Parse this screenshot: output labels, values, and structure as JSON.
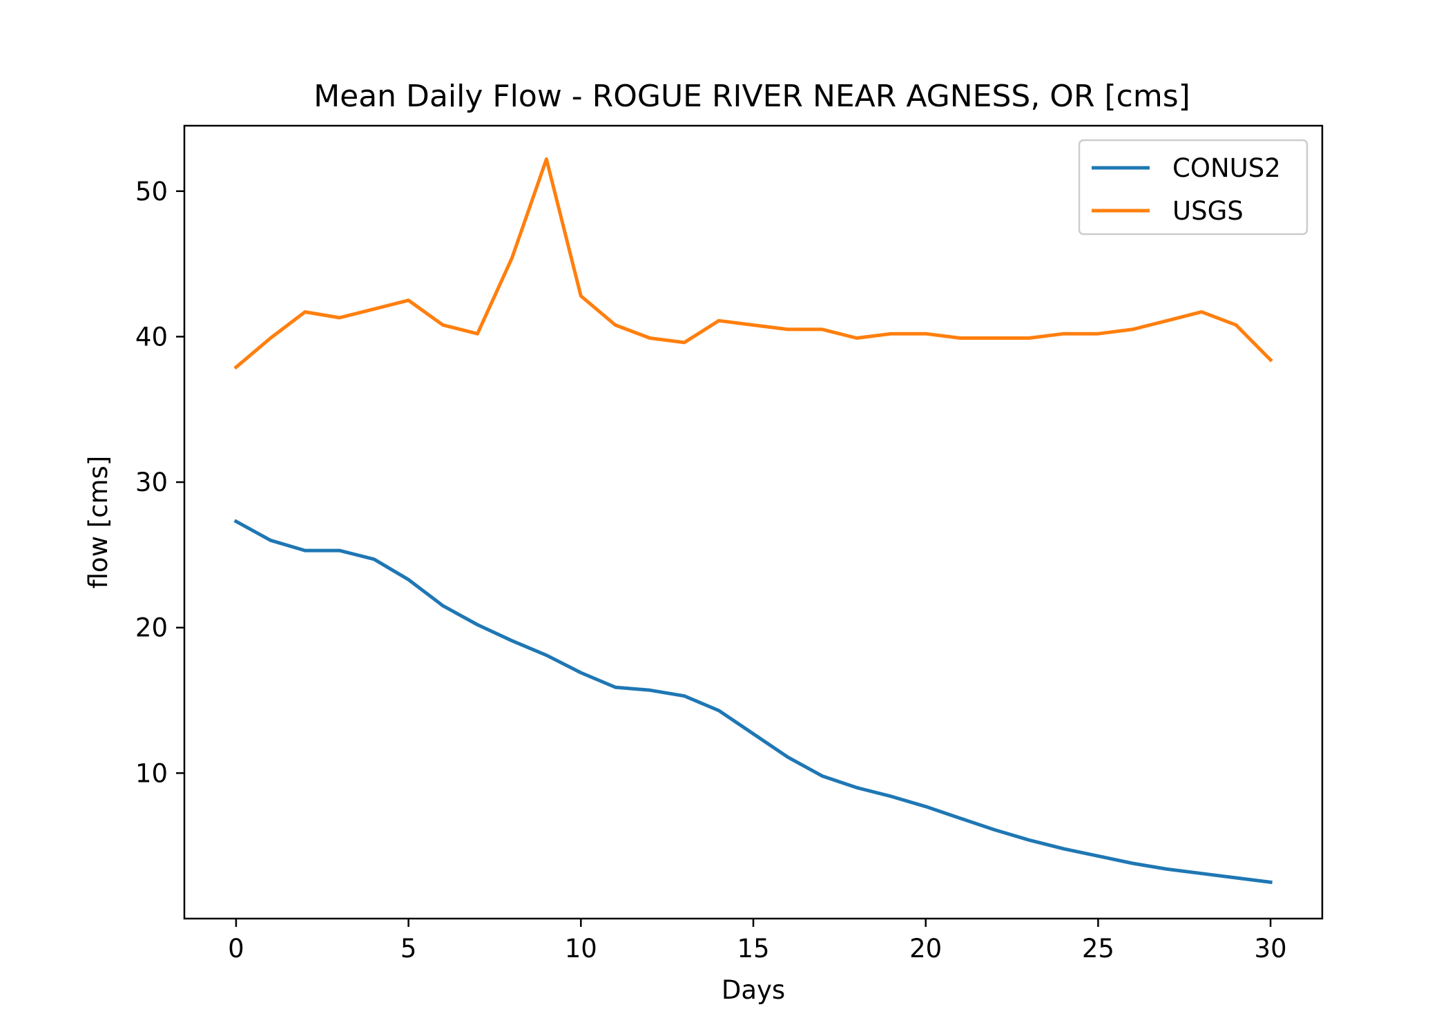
{
  "chart_data": {
    "type": "line",
    "title": "Mean Daily Flow - ROGUE RIVER NEAR AGNESS, OR [cms]",
    "xlabel": "Days",
    "ylabel": "flow [cms]",
    "xlim": [
      -1.5,
      31.5
    ],
    "ylim": [
      0,
      54.5
    ],
    "xticks": [
      0,
      5,
      10,
      15,
      20,
      25,
      30
    ],
    "yticks": [
      10,
      20,
      30,
      40,
      50
    ],
    "grid": false,
    "legend_position": "top-right",
    "x": [
      0,
      1,
      2,
      3,
      4,
      5,
      6,
      7,
      8,
      9,
      10,
      11,
      12,
      13,
      14,
      15,
      16,
      17,
      18,
      19,
      20,
      21,
      22,
      23,
      24,
      25,
      26,
      27,
      28,
      29,
      30
    ],
    "series": [
      {
        "name": "CONUS2",
        "color": "#1f77b4",
        "values": [
          27.3,
          26.0,
          25.3,
          25.3,
          24.7,
          23.3,
          21.5,
          20.2,
          19.1,
          18.1,
          16.9,
          15.9,
          15.7,
          15.3,
          14.3,
          12.7,
          11.1,
          9.8,
          9.0,
          8.4,
          7.7,
          6.9,
          6.1,
          5.4,
          4.8,
          4.3,
          3.8,
          3.4,
          3.1,
          2.8,
          2.5
        ]
      },
      {
        "name": "USGS",
        "color": "#ff7f0e",
        "values": [
          37.9,
          39.9,
          41.7,
          41.3,
          41.9,
          42.5,
          40.8,
          40.2,
          45.4,
          52.2,
          42.8,
          40.8,
          39.9,
          39.6,
          41.1,
          40.8,
          40.5,
          40.5,
          39.9,
          40.2,
          40.2,
          39.9,
          39.9,
          39.9,
          40.2,
          40.2,
          40.5,
          41.1,
          41.7,
          40.8,
          38.4
        ]
      }
    ]
  }
}
